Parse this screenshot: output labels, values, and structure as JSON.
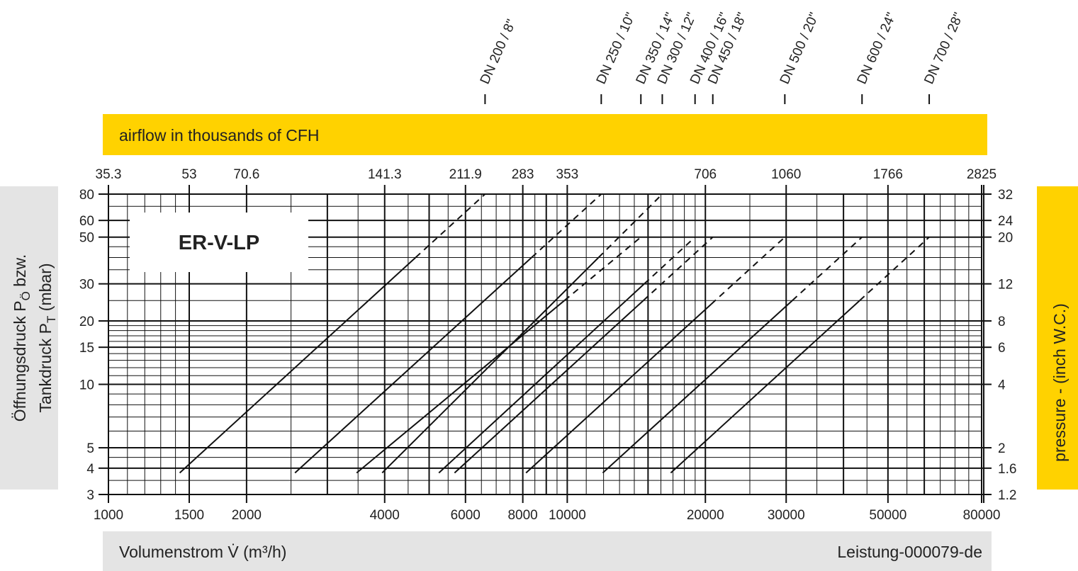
{
  "colors": {
    "band_yellow": "#FFD200",
    "band_gray": "#E4E4E4",
    "ink": "#111111"
  },
  "top_band": {
    "label": "airflow in thousands of CFH"
  },
  "bottom_band": {
    "xlabel": "Volumenstrom V̇ (m³/h)",
    "doc_id": "Leistung-000079-de"
  },
  "left_label": {
    "line1": {
      "main": "Öffnungsdruck P",
      "sub": "Ö",
      "after": " bzw."
    },
    "line2": {
      "main": "Tankdruck P",
      "sub": "T",
      "after": " (mbar)"
    }
  },
  "right_label": "pressure - (inch W.C.)",
  "chart_data": {
    "type": "line",
    "title": "ER-V-LP",
    "x_scale": "log",
    "y_scale": "log",
    "xlim": [
      1000,
      80000
    ],
    "ylim": [
      3,
      80
    ],
    "grid": true,
    "xlabel": "Volumenstrom V̇ (m³/h)",
    "ylabel": "Öffnungsdruck PÖ bzw. Tankdruck PT (mbar)",
    "x_ticks": [
      1000,
      1500,
      2000,
      4000,
      6000,
      8000,
      10000,
      20000,
      30000,
      50000,
      80000
    ],
    "x_tick_labels": [
      "1000",
      "1500",
      "2000",
      "4000",
      "6000",
      "8000",
      "10000",
      "20000",
      "30000",
      "50000",
      "80000"
    ],
    "y_ticks": [
      3,
      4,
      5,
      10,
      15,
      20,
      30,
      50,
      60,
      80
    ],
    "y_tick_labels": [
      "3",
      "4",
      "5",
      "10",
      "15",
      "20",
      "30",
      "50",
      "60",
      "80"
    ],
    "top_axis": {
      "label": "airflow in thousands of CFH",
      "ticks_at_x": [
        1000,
        1500,
        2000,
        4000,
        6000,
        8000,
        10000,
        20000,
        30000,
        50000,
        80000
      ],
      "tick_labels": [
        "35.3",
        "53",
        "70.6",
        "141.3",
        "211.9",
        "283",
        "353",
        "706",
        "1060",
        "1766",
        "2825"
      ]
    },
    "right_axis": {
      "label": "pressure - (inch W.C.)",
      "ticks_at_y": [
        3,
        4,
        5,
        10,
        15,
        20,
        30,
        50,
        60,
        80
      ],
      "tick_labels": [
        "1.2",
        "1.6",
        "2",
        "4",
        "6",
        "8",
        "12",
        "20",
        "24",
        "32"
      ]
    },
    "series": [
      {
        "name": "DN 200 / 8\"",
        "x": [
          1430,
          6620
        ],
        "y": [
          3.8,
          80
        ],
        "solid_to_y": 40
      },
      {
        "name": "DN 250 / 10\"",
        "x": [
          2550,
          11860
        ],
        "y": [
          3.8,
          80
        ],
        "solid_to_y": 40
      },
      {
        "name": "DN 350 / 14\"",
        "x": [
          3475,
          14470
        ],
        "y": [
          3.8,
          50
        ],
        "solid_to_y": 25
      },
      {
        "name": "DN 300 / 12\"",
        "x": [
          3950,
          16110
        ],
        "y": [
          3.8,
          80
        ],
        "solid_to_y": 40
      },
      {
        "name": "DN 400 / 16\"",
        "x": [
          5250,
          18990
        ],
        "y": [
          3.8,
          50
        ],
        "solid_to_y": 30
      },
      {
        "name": "DN 450 / 18\"",
        "x": [
          5680,
          20760
        ],
        "y": [
          3.8,
          50
        ],
        "solid_to_y": 25
      },
      {
        "name": "DN 500 / 20\"",
        "x": [
          8130,
          29800
        ],
        "y": [
          3.8,
          50
        ],
        "solid_to_y": 24
      },
      {
        "name": "DN 600 / 24\"",
        "x": [
          11950,
          43900
        ],
        "y": [
          3.8,
          50
        ],
        "solid_to_y": 25
      },
      {
        "name": "DN 700 / 28\"",
        "x": [
          16810,
          61500
        ],
        "y": [
          3.8,
          50
        ],
        "solid_to_y": 25
      }
    ]
  }
}
